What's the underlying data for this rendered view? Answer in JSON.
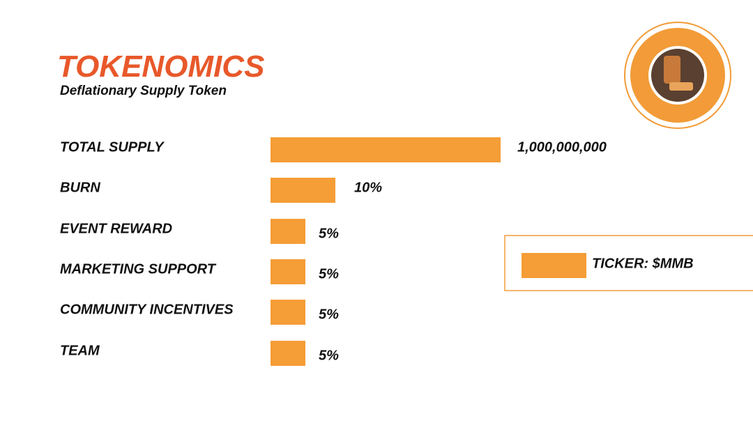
{
  "header": {
    "title": "TOKENOMICS",
    "subtitle": "Deflationary Supply Token"
  },
  "rows": [
    {
      "label": "TOTAL SUPPLY",
      "value": "1,000,000,000"
    },
    {
      "label": "BURN",
      "value": "10%"
    },
    {
      "label": "EVENT REWARD",
      "value": "5%"
    },
    {
      "label": "MARKETING SUPPORT",
      "value": "5%"
    },
    {
      "label": "COMMUNITY INCENTIVES",
      "value": "5%"
    },
    {
      "label": "TEAM",
      "value": "5%"
    }
  ],
  "ticker": {
    "label": "TICKER: $MMB"
  }
}
